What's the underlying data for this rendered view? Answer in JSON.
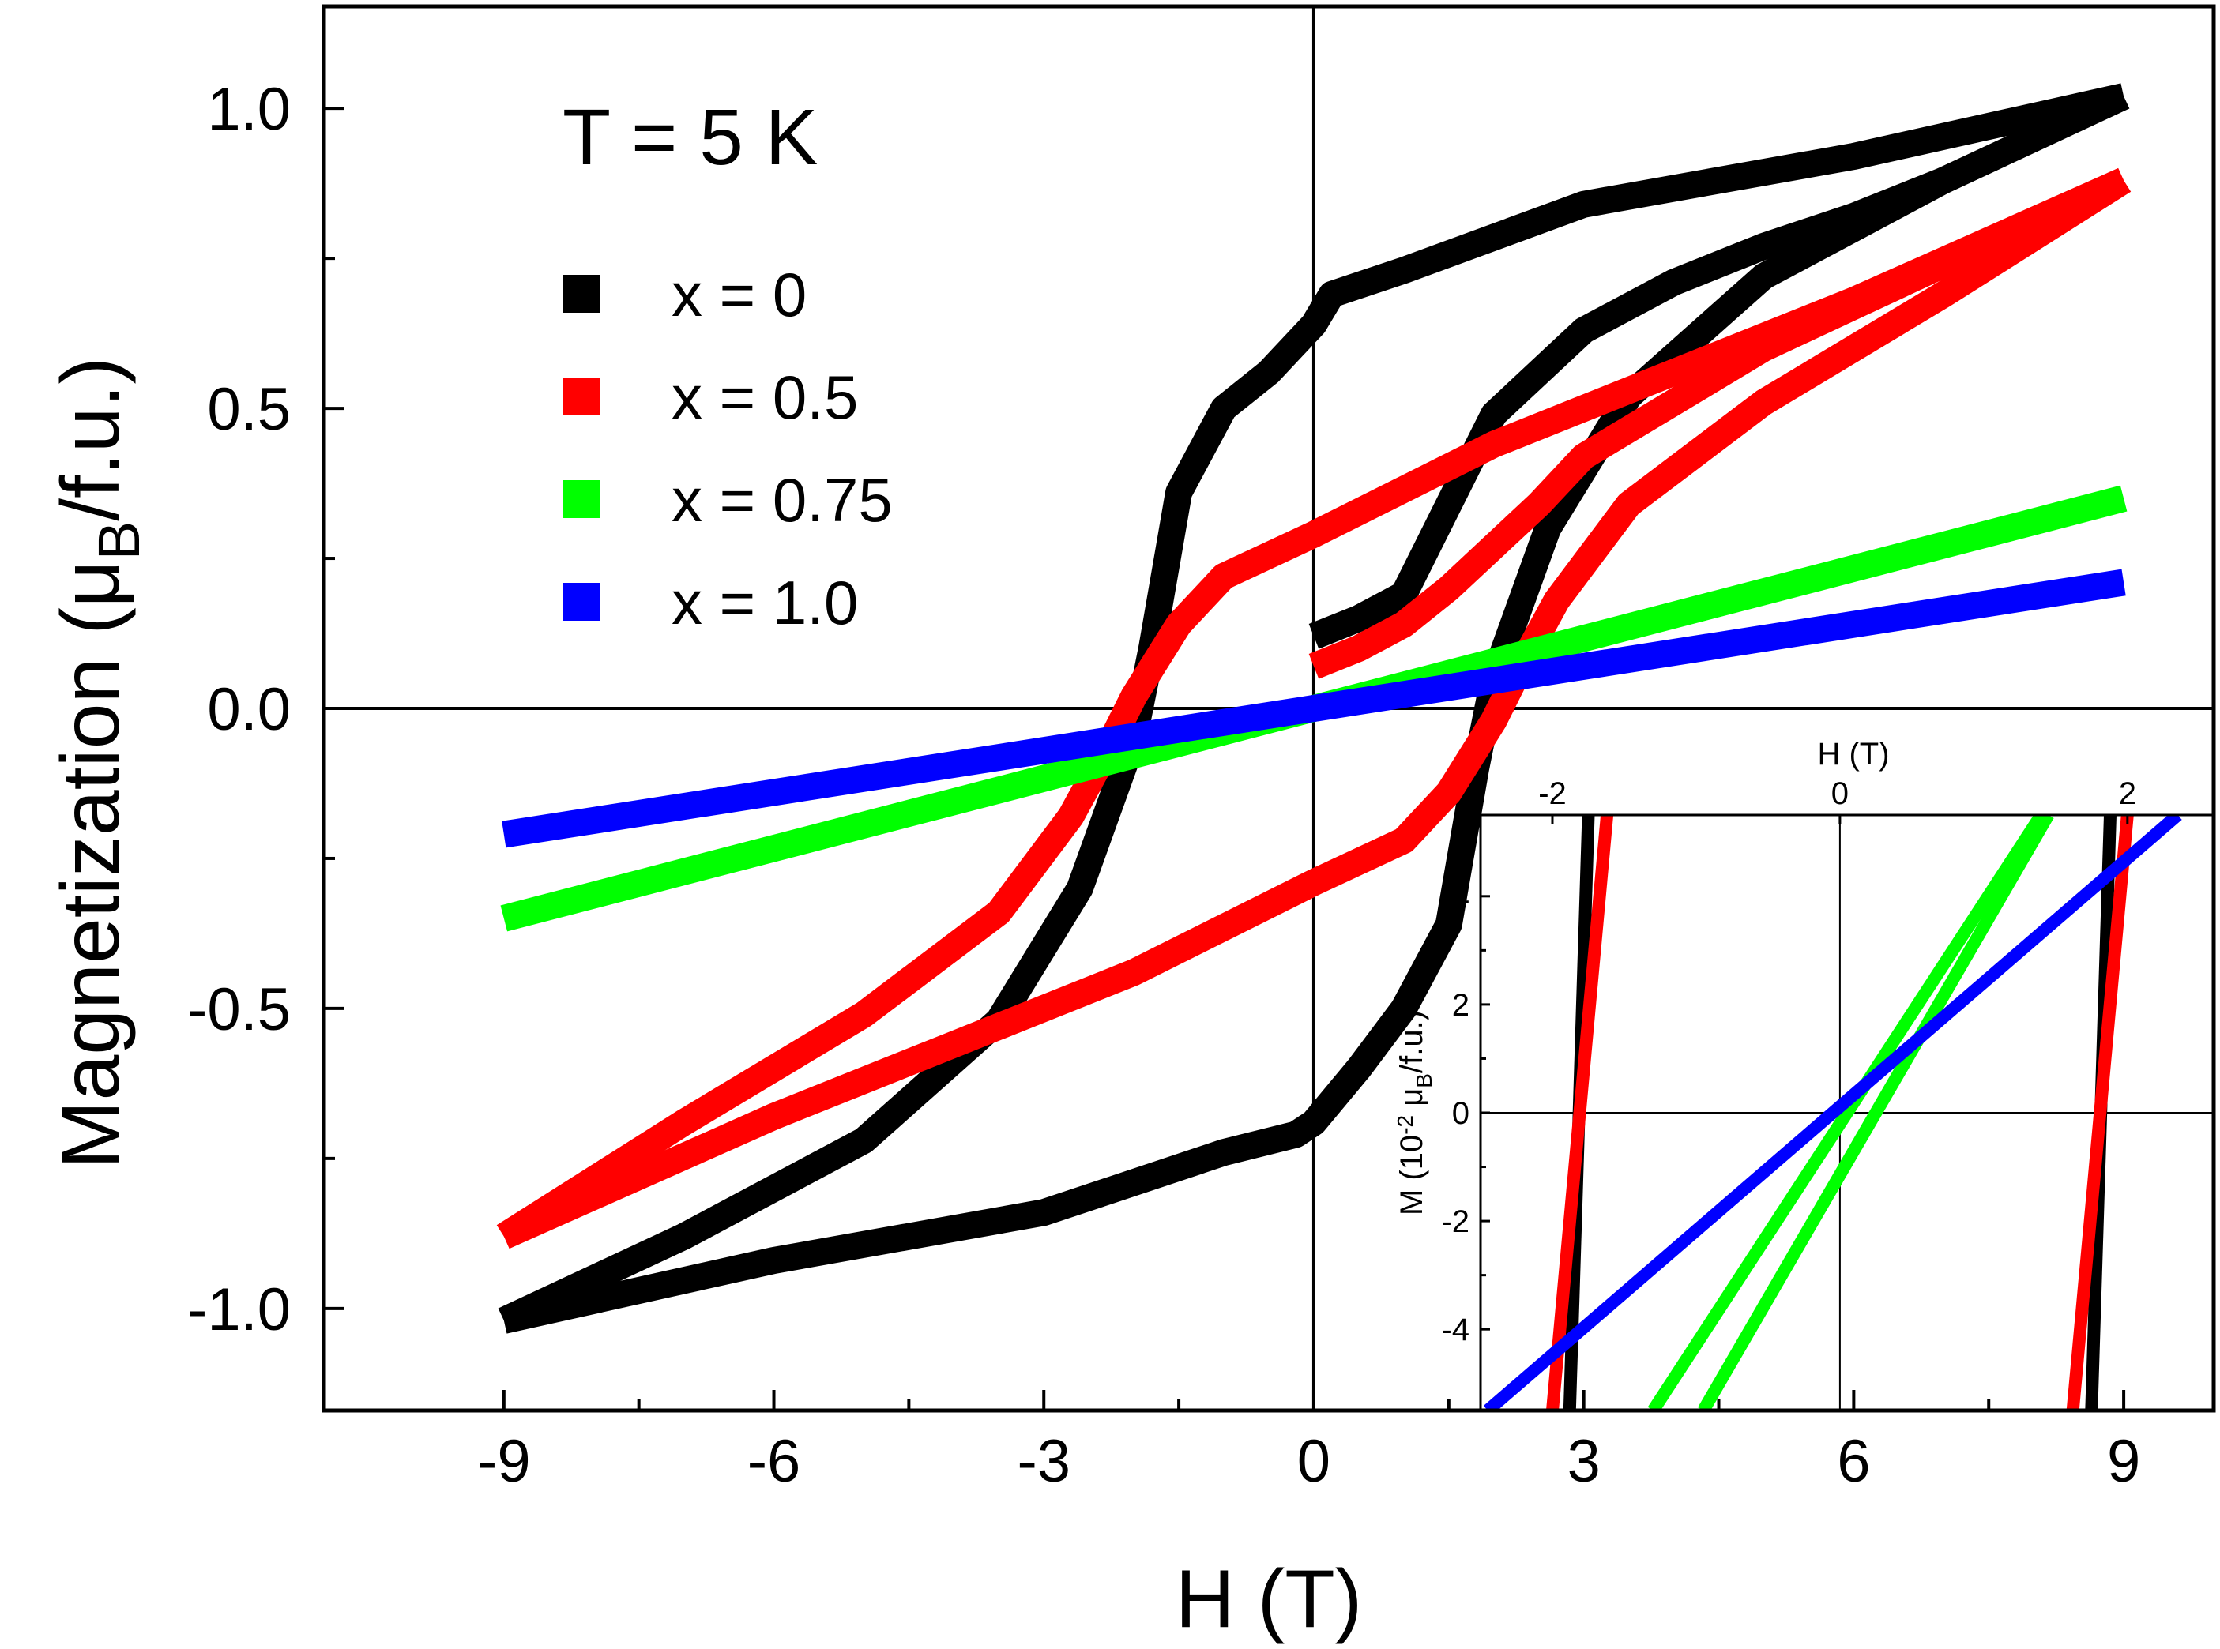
{
  "chart_data": [
    {
      "type": "line",
      "role": "main",
      "title": "",
      "annotation": "T = 5 K",
      "xlabel": "H (T)",
      "ylabel": "Magnetization (μB/f.u.)",
      "ylabel_parts": {
        "pre": "Magnetization (μ",
        "sub": "B",
        "post": "/f.u.)"
      },
      "xlim": [
        -11.0,
        10.0
      ],
      "ylim": [
        -1.17,
        1.17
      ],
      "x_ticks": [
        -9,
        -6,
        -3,
        0,
        3,
        6,
        9
      ],
      "x_tick_labels": [
        "-9",
        "-6",
        "-3",
        "0",
        "3",
        "6",
        "9"
      ],
      "y_ticks": [
        -1.0,
        -0.5,
        0.0,
        0.5,
        1.0
      ],
      "y_tick_labels": [
        "-1.0",
        "-0.5",
        "0.0",
        "0.5",
        "1.0"
      ],
      "legend_position": "top-left",
      "series": [
        {
          "name": "x = 0",
          "color": "#000000",
          "branches": [
            [
              [
                0,
                0.12
              ],
              [
                0.5,
                0.15
              ],
              [
                1.0,
                0.19
              ],
              [
                1.5,
                0.34
              ],
              [
                2.0,
                0.49
              ],
              [
                3.0,
                0.63
              ],
              [
                4.0,
                0.71
              ],
              [
                5.0,
                0.77
              ],
              [
                6.0,
                0.82
              ],
              [
                7.0,
                0.88
              ],
              [
                8.0,
                0.95
              ],
              [
                9.0,
                1.02
              ]
            ],
            [
              [
                9.0,
                1.02
              ],
              [
                6.0,
                0.92
              ],
              [
                3.0,
                0.84
              ],
              [
                1.0,
                0.73
              ],
              [
                0.2,
                0.69
              ],
              [
                0.0,
                0.64
              ],
              [
                -0.5,
                0.56
              ],
              [
                -1.0,
                0.5
              ],
              [
                -1.5,
                0.36
              ],
              [
                -1.8,
                0.1
              ],
              [
                -2.0,
                -0.05
              ],
              [
                -2.6,
                -0.3
              ],
              [
                -3.5,
                -0.52
              ],
              [
                -5.0,
                -0.72
              ],
              [
                -7.0,
                -0.88
              ],
              [
                -9.0,
                -1.02
              ]
            ],
            [
              [
                -9.0,
                -1.02
              ],
              [
                -6.0,
                -0.92
              ],
              [
                -3.0,
                -0.84
              ],
              [
                -1.0,
                -0.74
              ],
              [
                -0.2,
                -0.71
              ],
              [
                0.0,
                -0.69
              ],
              [
                0.5,
                -0.6
              ],
              [
                1.0,
                -0.5
              ],
              [
                1.5,
                -0.36
              ],
              [
                1.8,
                -0.1
              ],
              [
                2.0,
                0.05
              ],
              [
                2.6,
                0.3
              ],
              [
                3.5,
                0.52
              ],
              [
                5.0,
                0.72
              ],
              [
                7.0,
                0.88
              ],
              [
                9.0,
                1.02
              ]
            ]
          ]
        },
        {
          "name": "x = 0.5",
          "color": "#ff0000",
          "branches": [
            [
              [
                0,
                0.07
              ],
              [
                0.5,
                0.1
              ],
              [
                1.0,
                0.14
              ],
              [
                1.5,
                0.2
              ],
              [
                2.0,
                0.27
              ],
              [
                2.5,
                0.34
              ],
              [
                3.0,
                0.42
              ],
              [
                4.0,
                0.51
              ],
              [
                5.0,
                0.6
              ],
              [
                6.0,
                0.67
              ],
              [
                7.0,
                0.74
              ],
              [
                8.0,
                0.81
              ],
              [
                9.0,
                0.88
              ]
            ],
            [
              [
                9.0,
                0.88
              ],
              [
                6.0,
                0.68
              ],
              [
                4.0,
                0.56
              ],
              [
                2.0,
                0.44
              ],
              [
                0.0,
                0.29
              ],
              [
                -1.0,
                0.22
              ],
              [
                -1.5,
                0.14
              ],
              [
                -2.0,
                0.02
              ],
              [
                -2.3,
                -0.07
              ],
              [
                -2.7,
                -0.18
              ],
              [
                -3.5,
                -0.34
              ],
              [
                -5.0,
                -0.51
              ],
              [
                -7.0,
                -0.69
              ],
              [
                -9.0,
                -0.88
              ]
            ],
            [
              [
                -9.0,
                -0.88
              ],
              [
                -6.0,
                -0.68
              ],
              [
                -4.0,
                -0.56
              ],
              [
                -2.0,
                -0.44
              ],
              [
                0.0,
                -0.29
              ],
              [
                1.0,
                -0.22
              ],
              [
                1.5,
                -0.14
              ],
              [
                2.0,
                -0.02
              ],
              [
                2.3,
                0.07
              ],
              [
                2.7,
                0.18
              ],
              [
                3.5,
                0.34
              ],
              [
                5.0,
                0.51
              ],
              [
                7.0,
                0.69
              ],
              [
                9.0,
                0.88
              ]
            ]
          ]
        },
        {
          "name": "x = 0.75",
          "color": "#00ff00",
          "branches": [
            [
              [
                -9.0,
                -0.35
              ],
              [
                9.0,
                0.35
              ]
            ]
          ]
        },
        {
          "name": "x = 1.0",
          "color": "#0000ff",
          "branches": [
            [
              [
                -9.0,
                -0.21
              ],
              [
                9.0,
                0.21
              ]
            ]
          ]
        }
      ]
    },
    {
      "type": "line",
      "role": "inset",
      "title": "",
      "xlabel": "H (T)",
      "ylabel": "M (10-2 μB/f.u.)",
      "ylabel_parts": {
        "a": "M (10",
        "sup": "-2",
        "b": " μ",
        "sub": "B",
        "c": "/f.u.)"
      },
      "xlim": [
        -2.5,
        2.6
      ],
      "ylim": [
        -5.5,
        5.5
      ],
      "x_ticks": [
        -2,
        0,
        2
      ],
      "x_tick_labels": [
        "-2",
        "0",
        "2"
      ],
      "y_ticks": [
        -4,
        -2,
        0,
        2,
        4
      ],
      "y_tick_labels": [
        "-4",
        "-2",
        "0",
        "2",
        "4"
      ],
      "series": [
        {
          "name": "x = 0",
          "color": "#000000",
          "branches": [
            [
              [
                -1.88,
                -5.5
              ],
              [
                -1.75,
                5.5
              ]
            ],
            [
              [
                1.75,
                -5.5
              ],
              [
                1.88,
                5.5
              ]
            ]
          ]
        },
        {
          "name": "x = 0.5",
          "color": "#ff0000",
          "branches": [
            [
              [
                -2.0,
                -5.5
              ],
              [
                -1.62,
                5.5
              ]
            ],
            [
              [
                1.62,
                -5.5
              ],
              [
                2.0,
                5.5
              ]
            ]
          ]
        },
        {
          "name": "x = 0.75",
          "color": "#00ff00",
          "branches": [
            [
              [
                -1.3,
                -5.5
              ],
              [
                1.4,
                5.5
              ]
            ],
            [
              [
                -0.95,
                -5.5
              ],
              [
                1.45,
                5.5
              ]
            ]
          ]
        },
        {
          "name": "x = 1.0",
          "color": "#0000ff",
          "branches": [
            [
              [
                -2.45,
                -5.5
              ],
              [
                2.35,
                5.5
              ]
            ]
          ]
        }
      ]
    }
  ]
}
